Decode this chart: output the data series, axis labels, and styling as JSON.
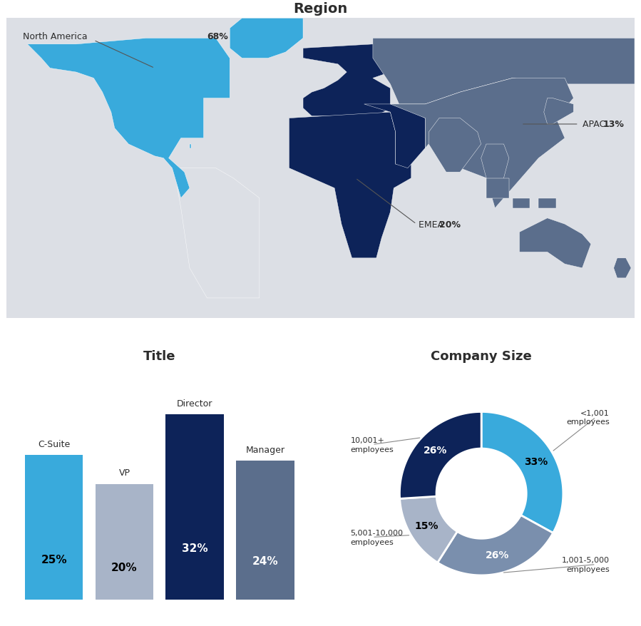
{
  "title_region": "Region",
  "title_title": "Title",
  "title_company": "Company Size",
  "background_color": "#ffffff",
  "region_colors": {
    "north_america": "#39AADC",
    "emea": "#0D2359",
    "apac": "#5B6E8C",
    "rest": "#DCDFE5"
  },
  "bar_categories": [
    "C-Suite",
    "VP",
    "Director",
    "Manager"
  ],
  "bar_values": [
    25,
    20,
    32,
    24
  ],
  "bar_colors": [
    "#39AADC",
    "#A8B4C8",
    "#0D2359",
    "#5B6E8C"
  ],
  "bar_label_colors": [
    "#000000",
    "#000000",
    "#ffffff",
    "#ffffff"
  ],
  "donut_labels": [
    "<1,001\nemployees",
    "1,001-5,000\nemployees",
    "5,001-10,000\nemployees",
    "10,001+\nemployees"
  ],
  "donut_values": [
    33,
    26,
    15,
    26
  ],
  "donut_colors": [
    "#39AADC",
    "#7A8FAD",
    "#A8B4C8",
    "#0D2359"
  ],
  "donut_label_colors": [
    "#000000",
    "#ffffff",
    "#000000",
    "#ffffff"
  ],
  "font_color": "#2d2d2d",
  "title_fontsize": 13,
  "label_fontsize": 9,
  "pct_fontsize": 11
}
